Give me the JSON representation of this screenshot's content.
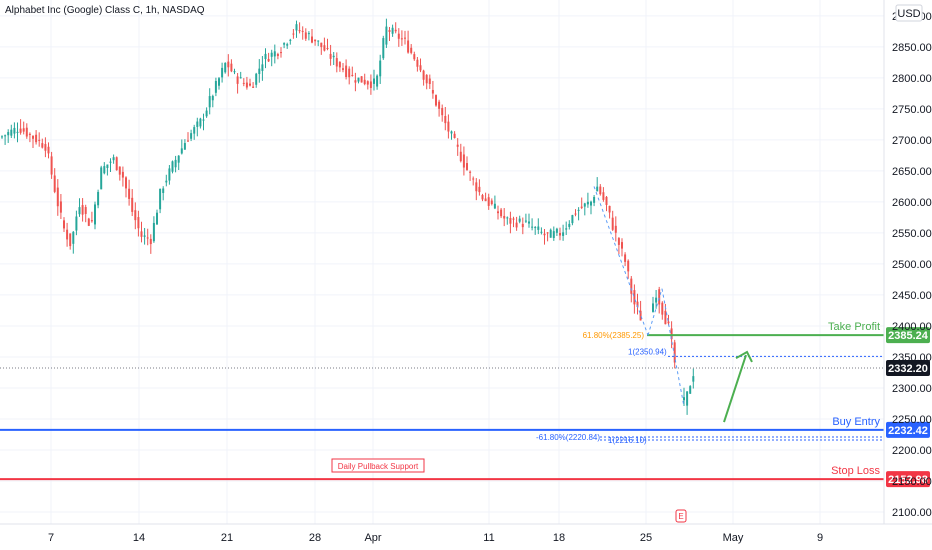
{
  "header": {
    "title": "Alphabet Inc (Google) Class C, 1h, NASDAQ"
  },
  "currency_label": "USD",
  "chart_data": {
    "type": "candlestick",
    "title": "Alphabet Inc (Google) Class C, 1h, NASDAQ",
    "ylim": [
      2080,
      2975
    ],
    "y_ticks": [
      2100,
      2150,
      2200,
      2250,
      2300,
      2350,
      2400,
      2450,
      2500,
      2550,
      2600,
      2650,
      2700,
      2750,
      2800,
      2850,
      2900,
      2950
    ],
    "y_tick_labels": [
      "2100.00",
      "2150.00",
      "2200.00",
      "2250.00",
      "2300.00",
      "2350.00",
      "2400.00",
      "2450.00",
      "2500.00",
      "2550.00",
      "2600.00",
      "2650.00",
      "2700.00",
      "2750.00",
      "2800.00",
      "2850.00",
      "2900.00",
      "2950.00"
    ],
    "x_ticks": [
      "7",
      "14",
      "21",
      "28",
      "Apr",
      "11",
      "18",
      "25",
      "May",
      "9"
    ],
    "price_path": [
      [
        "Mar 4",
        2705
      ],
      [
        "Mar 5",
        2720
      ],
      [
        "Mar 7",
        2690
      ],
      [
        "Mar 8",
        2610
      ],
      [
        "Mar 9",
        2560
      ],
      [
        "Mar 10",
        2530
      ],
      [
        "Mar 11",
        2600
      ],
      [
        "Mar 12",
        2560
      ],
      [
        "Mar 14",
        2650
      ],
      [
        "Mar 15",
        2670
      ],
      [
        "Mar 16",
        2640
      ],
      [
        "Mar 17",
        2590
      ],
      [
        "Mar 18",
        2545
      ],
      [
        "Mar 19",
        2540
      ],
      [
        "Mar 21",
        2620
      ],
      [
        "Mar 22",
        2660
      ],
      [
        "Mar 23",
        2700
      ],
      [
        "Mar 24",
        2730
      ],
      [
        "Mar 25",
        2825
      ],
      [
        "Mar 26",
        2800
      ],
      [
        "Mar 27",
        2785
      ],
      [
        "Mar 28",
        2830
      ],
      [
        "Mar 29",
        2845
      ],
      [
        "Mar 30",
        2880
      ],
      [
        "Mar 31",
        2860
      ],
      [
        "Apr 1",
        2830
      ],
      [
        "Apr 2",
        2800
      ],
      [
        "Apr 3",
        2790
      ],
      [
        "Apr 4",
        2880
      ],
      [
        "Apr 5",
        2860
      ],
      [
        "Apr 6",
        2820
      ],
      [
        "Apr 7",
        2780
      ],
      [
        "Apr 8",
        2740
      ],
      [
        "Apr 9",
        2700
      ],
      [
        "Apr 11",
        2655
      ],
      [
        "Apr 12",
        2610
      ],
      [
        "Apr 13",
        2595
      ],
      [
        "Apr 14",
        2570
      ],
      [
        "Apr 15",
        2565
      ],
      [
        "Apr 16",
        2545
      ],
      [
        "Apr 17",
        2550
      ],
      [
        "Apr 18",
        2585
      ],
      [
        "Apr 19",
        2600
      ],
      [
        "Apr 20",
        2625
      ],
      [
        "Apr 21",
        2595
      ],
      [
        "Apr 22",
        2545
      ],
      [
        "Apr 23",
        2500
      ],
      [
        "Apr 24",
        2440
      ],
      [
        "Apr 25",
        2395
      ],
      [
        "Apr 26",
        2455
      ],
      [
        "Apr 26b",
        2395
      ],
      [
        "Apr 27",
        2280
      ],
      [
        "Apr 28",
        2275
      ],
      [
        "Apr 28b",
        2325
      ]
    ],
    "levels": [
      {
        "name": "Take Profit",
        "value": 2385.24,
        "label": "2385.24",
        "color": "#4caf50"
      },
      {
        "name": "Buy Entry",
        "value": 2232.42,
        "label": "2232.42",
        "color": "#2962ff"
      },
      {
        "name": "Stop Loss",
        "value": 2152.98,
        "label": "2152.98",
        "color": "#f23645"
      }
    ],
    "last_price": {
      "value": 2332.2,
      "label": "2332.20"
    },
    "annotations": [
      {
        "text": "Daily Pullback Support",
        "color": "#f23645"
      },
      {
        "text": "61.80%(2385.25)",
        "color": "#ff9800"
      },
      {
        "text": "1(2350.94)",
        "color": "#2962ff"
      },
      {
        "text": "-61.80%(2220.84)",
        "color": "#2962ff"
      },
      {
        "text": "1(2216.10)",
        "color": "#2962ff"
      },
      {
        "text": "E",
        "color": "#f23645"
      }
    ],
    "fib_levels": [
      2350.94,
      2220.84,
      2216.1
    ],
    "colors": {
      "up": "#26a69a",
      "down": "#ef5350",
      "grid": "#f0f3fa"
    }
  }
}
